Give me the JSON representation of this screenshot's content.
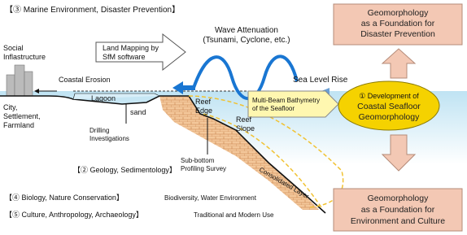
{
  "header": "【③ Marine Environment, Disaster Prevention】",
  "social_infrastructure": [
    "Social",
    "Inflastructure"
  ],
  "land_mapping": [
    "Land Mapping by",
    "SfM software"
  ],
  "wave_attenuation": [
    "Wave Attenuation",
    "(Tsunami, Cyclone, etc.)"
  ],
  "coastal_erosion": "Coastal Erosion",
  "sea_level_rise": "Sea Level Rise",
  "lagoon": "Lagoon",
  "sand": "sand",
  "city": [
    "City,",
    "Settlement,",
    "Farmland"
  ],
  "drilling": [
    "Drilling",
    "Investigations"
  ],
  "reef_edge": [
    "Reef",
    "Edge"
  ],
  "reef_slope": [
    "Reef",
    "Slope"
  ],
  "multibeam": [
    "Multi-Beam Bathymetry",
    "of the Seafloor"
  ],
  "sub_bottom": [
    "Sub-bottom",
    "Profiling Survey"
  ],
  "consolidated": "Consolidated Layer",
  "geology": "【② Geology, Sedimentology】",
  "biology": {
    "title": "【④ Biology, Nature Conservation】",
    "note": "Biodiversity, Water Environment"
  },
  "culture": {
    "title": "【⑤ Culture, Anthropology, Archaeology】",
    "note": "Traditional and Modern Use"
  },
  "center": [
    "① Development of",
    "Coastal Seafloor",
    "Geomorphology"
  ],
  "top_box": [
    "Geomorphology",
    "as a Foundation for",
    "Disaster Prevention"
  ],
  "bottom_box": [
    "Geomorphology",
    "as a Foundation for",
    "Environment and Culture"
  ]
}
